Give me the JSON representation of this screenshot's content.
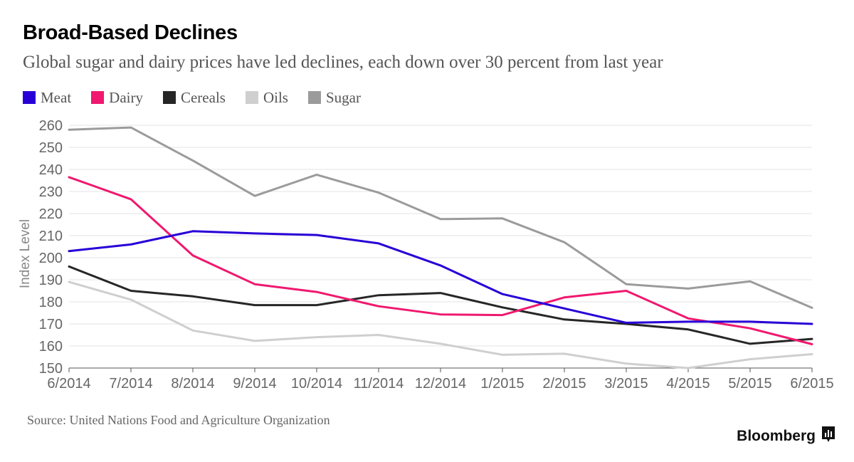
{
  "title": "Broad-Based Declines",
  "subtitle": "Global sugar and dairy prices have led declines, each down over 30 percent from last year",
  "source": "Source: United Nations Food and Agriculture Organization",
  "brand": "Bloomberg",
  "chart_data": {
    "type": "line",
    "title": "Broad-Based Declines",
    "ylabel": "Index Level",
    "xlabel": "",
    "categories": [
      "6/2014",
      "7/2014",
      "8/2014",
      "9/2014",
      "10/2014",
      "11/2014",
      "12/2014",
      "1/2015",
      "2/2015",
      "3/2015",
      "4/2015",
      "5/2015",
      "6/2015"
    ],
    "ylim": [
      150,
      260
    ],
    "yticks": [
      150,
      160,
      170,
      180,
      190,
      200,
      210,
      220,
      230,
      240,
      250,
      260
    ],
    "grid": true,
    "legend_position": "top-left",
    "series": [
      {
        "name": "Meat",
        "color": "#2800d7",
        "values": [
          203,
          206,
          212,
          211,
          210.3,
          206.5,
          196.5,
          183.5,
          177,
          170.5,
          171,
          171,
          170
        ]
      },
      {
        "name": "Dairy",
        "color": "#f0186f",
        "values": [
          236.5,
          226.5,
          201,
          188,
          184.5,
          178,
          174.3,
          174,
          182,
          185,
          172.5,
          168,
          160.8
        ]
      },
      {
        "name": "Cereals",
        "color": "#262626",
        "values": [
          196,
          185,
          182.5,
          178.5,
          178.5,
          183,
          184,
          177.5,
          172,
          170,
          167.5,
          161,
          163.2
        ]
      },
      {
        "name": "Oils",
        "color": "#cfcfcf",
        "values": [
          189,
          181,
          167,
          162.3,
          164,
          165,
          161,
          156,
          156.5,
          152,
          150,
          154,
          156.3
        ]
      },
      {
        "name": "Sugar",
        "color": "#9b9b9b",
        "values": [
          258,
          259,
          244,
          228,
          237.6,
          229.5,
          217.5,
          217.8,
          207,
          188,
          186,
          189.3,
          177.3
        ]
      }
    ]
  }
}
